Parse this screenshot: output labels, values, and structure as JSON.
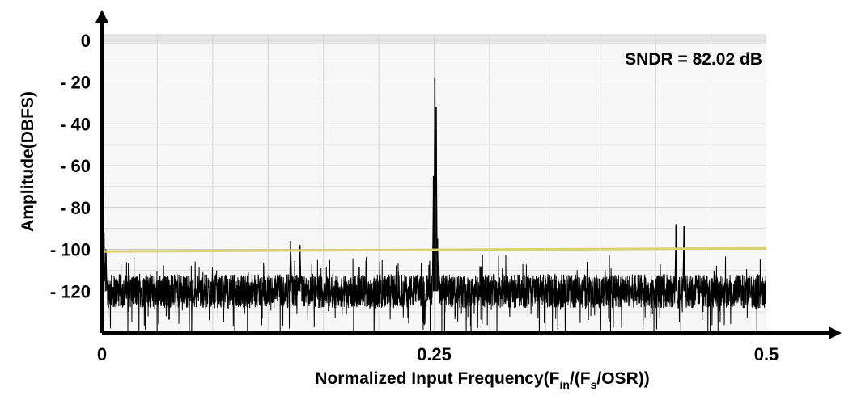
{
  "chart_data": {
    "type": "line",
    "annotation": "SNDR = 82.02 dB",
    "xlabel": {
      "main": "Normalized Input Frequency(F",
      "sub1": "in",
      "mid": "/(F",
      "sub2": "s",
      "end": "/OSR))"
    },
    "ylabel": "Amplitude(DBFS)",
    "xlim": [
      0,
      0.5
    ],
    "ylim": [
      -140,
      3
    ],
    "x_ticks": [
      {
        "value": 0,
        "label": "0"
      },
      {
        "value": 0.25,
        "label": "0.25"
      },
      {
        "value": 0.5,
        "label": "0.5"
      }
    ],
    "y_ticks": [
      {
        "value": 0,
        "label": "0"
      },
      {
        "value": -20,
        "label": "- 20"
      },
      {
        "value": -40,
        "label": "- 40"
      },
      {
        "value": -60,
        "label": "- 60"
      },
      {
        "value": -80,
        "label": "- 80"
      },
      {
        "value": -100,
        "label": "- 100"
      },
      {
        "value": -120,
        "label": "- 120"
      }
    ],
    "grid": true,
    "series": [
      {
        "name": "",
        "color": "#000000",
        "noise_floor_dB": -120,
        "noise_spread_dB": 18,
        "peaks": [
          {
            "x": 0.0005,
            "y": -2
          },
          {
            "x": 0.0015,
            "y": -92
          },
          {
            "x": 0.003,
            "y": -100
          },
          {
            "x": 0.142,
            "y": -96
          },
          {
            "x": 0.149,
            "y": -98
          },
          {
            "x": 0.2505,
            "y": -18
          },
          {
            "x": 0.2515,
            "y": -32
          },
          {
            "x": 0.2495,
            "y": -65
          },
          {
            "x": 0.2525,
            "y": -95
          },
          {
            "x": 0.432,
            "y": -88
          },
          {
            "x": 0.438,
            "y": -89
          }
        ]
      },
      {
        "name": "",
        "color": "#d8d270",
        "points": [
          [
            0,
            -101
          ],
          [
            0.5,
            -99.5
          ]
        ]
      }
    ]
  }
}
